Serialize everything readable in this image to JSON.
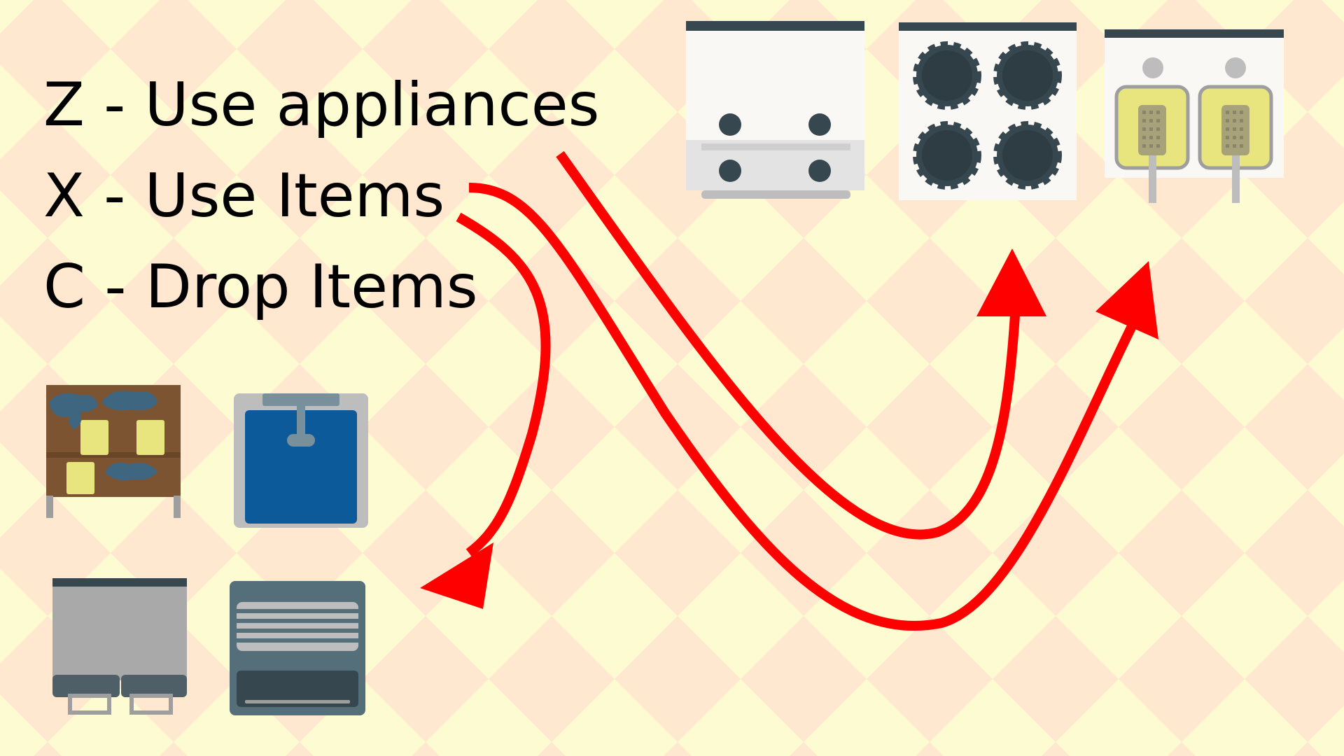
{
  "controls": [
    {
      "key": "Z",
      "action": "Use appliances",
      "text": "Z - Use appliances"
    },
    {
      "key": "X",
      "action": "Use Items",
      "text": "X - Use Items"
    },
    {
      "key": "C",
      "action": "Drop Items",
      "text": "C - Drop Items"
    }
  ],
  "colors": {
    "background_light": "#fdfbd1",
    "background_tile": "#ffe7d0",
    "arrow": "#ff0000",
    "appliance_dark": "#37474f",
    "appliance_white": "#faf8f4"
  },
  "appliances": [
    {
      "icon": "oven-icon"
    },
    {
      "icon": "stovetop-icon"
    },
    {
      "icon": "deep-fryer-icon"
    },
    {
      "icon": "dish-rack-icon"
    },
    {
      "icon": "sink-icon"
    },
    {
      "icon": "trash-bin-icon"
    },
    {
      "icon": "dishwasher-icon"
    }
  ]
}
